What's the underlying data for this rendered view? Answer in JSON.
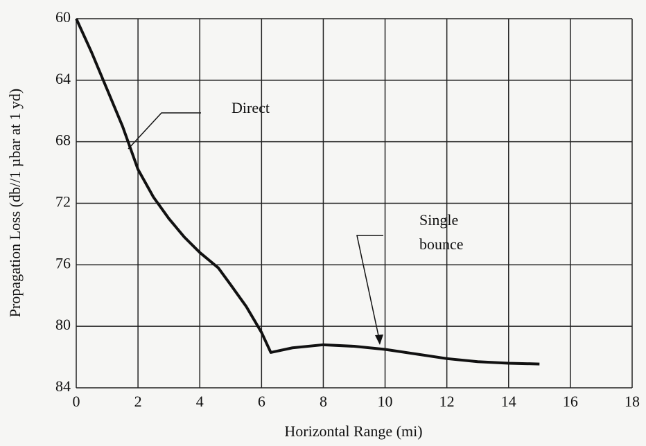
{
  "chart_data": {
    "type": "line",
    "xlabel": "Horizontal Range (mi)",
    "ylabel": "Propagation Loss (db//1 µbar at 1 yd)",
    "x": [
      0,
      0.5,
      1,
      1.5,
      2,
      2.5,
      3,
      3.5,
      4,
      4.6,
      5,
      5.5,
      6,
      6.3,
      7,
      8,
      9,
      10,
      11,
      12,
      13,
      14,
      15
    ],
    "series": [
      {
        "name": "Direct",
        "color": "#111111",
        "values": [
          60,
          62.2,
          64.6,
          67.0,
          69.8,
          71.6,
          73.0,
          74.2,
          75.2,
          76.2,
          77.3,
          78.7,
          80.4,
          81.7,
          81.4,
          81.2,
          81.3,
          81.5,
          81.8,
          82.1,
          82.3,
          82.4,
          82.45
        ]
      }
    ],
    "annotations": [
      "Direct",
      "Single",
      "bounce"
    ],
    "xlim": [
      0,
      18
    ],
    "xticks": [
      0,
      2,
      4,
      6,
      8,
      10,
      12,
      14,
      16,
      18
    ],
    "ylim": [
      60,
      84
    ],
    "yticks": [
      60,
      64,
      68,
      72,
      76,
      80,
      84
    ],
    "y_inverted": true,
    "grid": true
  }
}
